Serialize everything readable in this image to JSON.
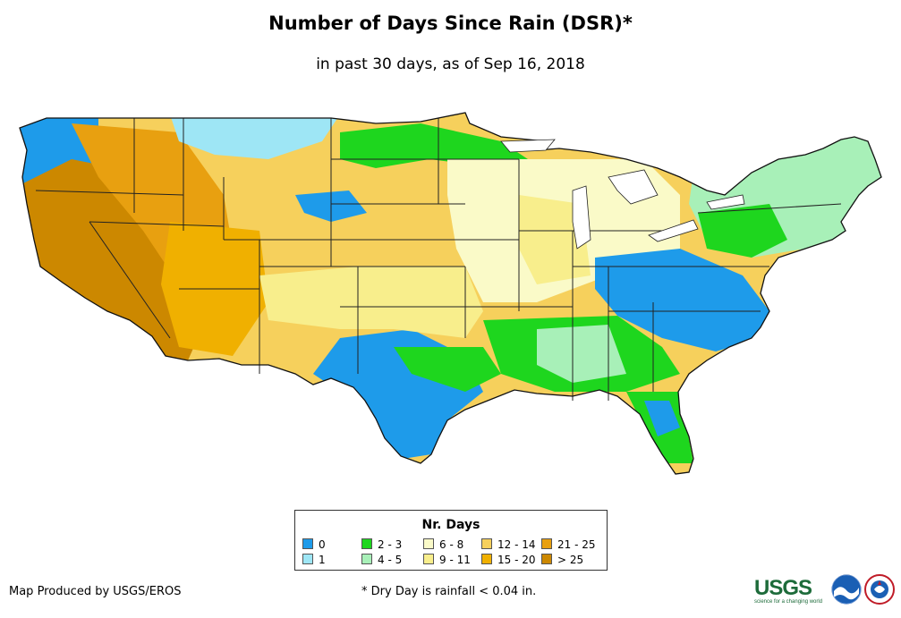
{
  "title": "Number of Days Since Rain (DSR)*",
  "subtitle": "in past 30 days, as of Sep 16, 2018",
  "legend": {
    "title": "Nr. Days",
    "items": [
      {
        "label": "0",
        "color": "#1e9bea"
      },
      {
        "label": "1",
        "color": "#9ee6f5"
      },
      {
        "label": "2 - 3",
        "color": "#1ed61e"
      },
      {
        "label": "4 - 5",
        "color": "#a8f0b8"
      },
      {
        "label": "6 - 8",
        "color": "#fafac8"
      },
      {
        "label": "9 - 11",
        "color": "#f8ee8c"
      },
      {
        "label": "12 - 14",
        "color": "#f6d05c"
      },
      {
        "label": "15 - 20",
        "color": "#f0b000"
      },
      {
        "label": "21 - 25",
        "color": "#e8a010"
      },
      {
        "label": "> 25",
        "color": "#cc8800"
      }
    ]
  },
  "footer": {
    "credit": "Map Produced by USGS/EROS",
    "note": "* Dry Day is rainfall < 0.04 in."
  },
  "logos": {
    "usgs": "USGS",
    "usgs_tagline": "science for a changing world",
    "noaa": "NOAA",
    "nws": "NATIONAL WEATHER SERVICE"
  }
}
